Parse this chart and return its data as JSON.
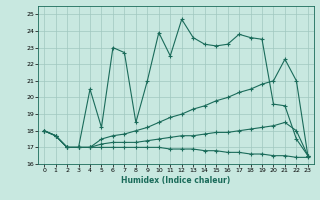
{
  "xlabel": "Humidex (Indice chaleur)",
  "xlim": [
    -0.5,
    23.5
  ],
  "ylim": [
    16,
    25.5
  ],
  "yticks": [
    16,
    17,
    18,
    19,
    20,
    21,
    22,
    23,
    24,
    25
  ],
  "xticks": [
    0,
    1,
    2,
    3,
    4,
    5,
    6,
    7,
    8,
    9,
    10,
    11,
    12,
    13,
    14,
    15,
    16,
    17,
    18,
    19,
    20,
    21,
    22,
    23
  ],
  "bg_color": "#c8e8e0",
  "grid_color": "#a0c8c0",
  "line_color": "#1a6b5a",
  "series": [
    [
      18.0,
      17.7,
      17.0,
      17.0,
      20.5,
      18.2,
      23.0,
      22.7,
      18.5,
      21.0,
      23.9,
      22.5,
      24.7,
      23.6,
      23.2,
      23.1,
      23.2,
      23.8,
      23.6,
      23.5,
      19.6,
      19.5,
      17.5,
      16.5
    ],
    [
      18.0,
      17.7,
      17.0,
      17.0,
      17.0,
      17.5,
      17.7,
      17.8,
      18.0,
      18.2,
      18.5,
      18.8,
      19.0,
      19.3,
      19.5,
      19.8,
      20.0,
      20.3,
      20.5,
      20.8,
      21.0,
      22.3,
      21.0,
      16.5
    ],
    [
      18.0,
      17.7,
      17.0,
      17.0,
      17.0,
      17.2,
      17.3,
      17.3,
      17.3,
      17.4,
      17.5,
      17.6,
      17.7,
      17.7,
      17.8,
      17.9,
      17.9,
      18.0,
      18.1,
      18.2,
      18.3,
      18.5,
      18.0,
      16.5
    ],
    [
      18.0,
      17.7,
      17.0,
      17.0,
      17.0,
      17.0,
      17.0,
      17.0,
      17.0,
      17.0,
      17.0,
      16.9,
      16.9,
      16.9,
      16.8,
      16.8,
      16.7,
      16.7,
      16.6,
      16.6,
      16.5,
      16.5,
      16.4,
      16.4
    ]
  ]
}
